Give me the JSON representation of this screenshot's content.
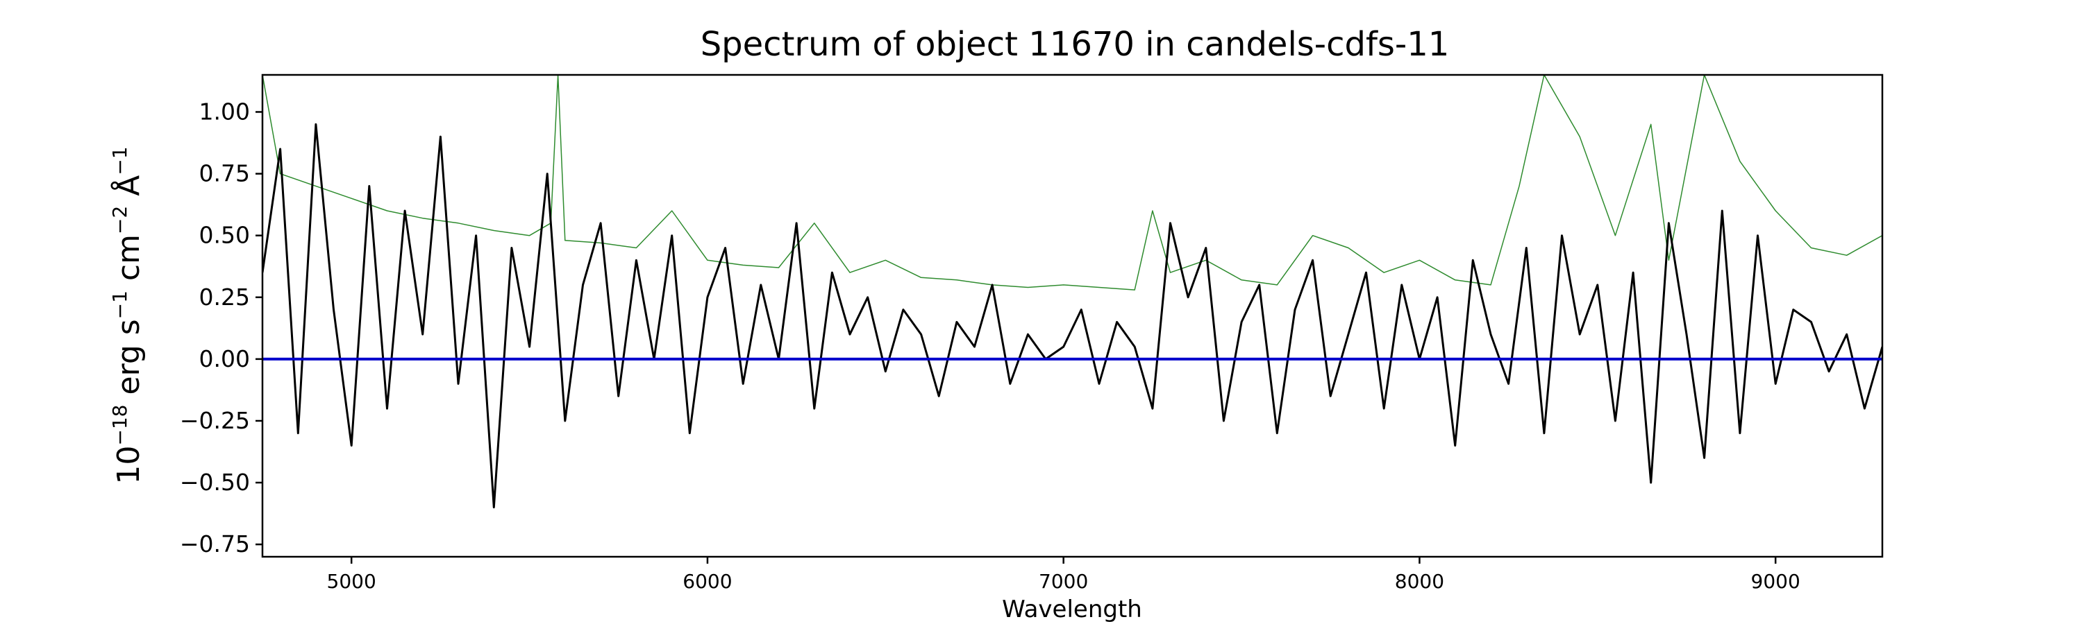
{
  "chart_data": {
    "type": "line",
    "title": "Spectrum of object 11670 in candels-cdfs-11",
    "xlabel": "Wavelength",
    "ylabel": {
      "base": "10",
      "exp": "−18",
      "unit1": " erg s",
      "unit1_exp": "−1",
      "unit2": " cm",
      "unit2_exp": "−2",
      "unit3": " Å",
      "unit3_exp": "−1"
    },
    "xlim": [
      4750,
      9300
    ],
    "ylim": [
      -0.8,
      1.15
    ],
    "xticks": [
      5000,
      6000,
      7000,
      8000,
      9000
    ],
    "xtick_labels": [
      "5000",
      "6000",
      "7000",
      "8000",
      "9000"
    ],
    "yticks": [
      1.0,
      0.75,
      0.5,
      0.25,
      0.0,
      -0.25,
      -0.5,
      -0.75
    ],
    "ytick_labels": [
      "1.00",
      "0.75",
      "0.50",
      "0.25",
      "0.00",
      "−0.25",
      "−0.50",
      "−0.75"
    ],
    "colors": {
      "flux": "#000000",
      "error": "#2e8b2e",
      "zero": "#0000cc"
    },
    "series": [
      {
        "role": "flux",
        "x": [
          4750,
          4800,
          4850,
          4900,
          4950,
          5000,
          5050,
          5100,
          5150,
          5200,
          5250,
          5300,
          5350,
          5400,
          5450,
          5500,
          5550,
          5600,
          5650,
          5700,
          5750,
          5800,
          5850,
          5900,
          5950,
          6000,
          6050,
          6100,
          6150,
          6200,
          6250,
          6300,
          6350,
          6400,
          6450,
          6500,
          6550,
          6600,
          6650,
          6700,
          6750,
          6800,
          6850,
          6900,
          6950,
          7000,
          7050,
          7100,
          7150,
          7200,
          7250,
          7300,
          7350,
          7400,
          7450,
          7500,
          7550,
          7600,
          7650,
          7700,
          7750,
          7800,
          7850,
          7900,
          7950,
          8000,
          8050,
          8100,
          8150,
          8200,
          8250,
          8300,
          8350,
          8400,
          8450,
          8500,
          8550,
          8600,
          8650,
          8700,
          8750,
          8800,
          8850,
          8900,
          8950,
          9000,
          9050,
          9100,
          9150,
          9200,
          9250,
          9300
        ],
        "y": [
          0.35,
          0.85,
          -0.3,
          0.95,
          0.2,
          -0.35,
          0.7,
          -0.2,
          0.6,
          0.1,
          0.9,
          -0.1,
          0.5,
          -0.6,
          0.45,
          0.05,
          0.75,
          -0.25,
          0.3,
          0.55,
          -0.15,
          0.4,
          0.0,
          0.5,
          -0.3,
          0.25,
          0.45,
          -0.1,
          0.3,
          0.0,
          0.55,
          -0.2,
          0.35,
          0.1,
          0.25,
          -0.05,
          0.2,
          0.1,
          -0.15,
          0.15,
          0.05,
          0.3,
          -0.1,
          0.1,
          0.0,
          0.05,
          0.2,
          -0.1,
          0.15,
          0.05,
          -0.2,
          0.55,
          0.25,
          0.45,
          -0.25,
          0.15,
          0.3,
          -0.3,
          0.2,
          0.4,
          -0.15,
          0.1,
          0.35,
          -0.2,
          0.3,
          0.0,
          0.25,
          -0.35,
          0.4,
          0.1,
          -0.1,
          0.45,
          -0.3,
          0.5,
          0.1,
          0.3,
          -0.25,
          0.35,
          -0.5,
          0.55,
          0.1,
          -0.4,
          0.6,
          -0.3,
          0.5,
          -0.1,
          0.2,
          0.15,
          -0.05,
          0.1,
          -0.2,
          0.05
        ]
      },
      {
        "role": "error",
        "x": [
          4750,
          4800,
          4900,
          5000,
          5100,
          5200,
          5300,
          5400,
          5500,
          5560,
          5580,
          5600,
          5700,
          5800,
          5900,
          6000,
          6100,
          6200,
          6300,
          6400,
          6500,
          6600,
          6700,
          6800,
          6900,
          7000,
          7100,
          7200,
          7250,
          7300,
          7400,
          7500,
          7600,
          7700,
          7800,
          7900,
          8000,
          8100,
          8200,
          8280,
          8350,
          8450,
          8550,
          8650,
          8700,
          8800,
          8900,
          9000,
          9100,
          9200,
          9300
        ],
        "y": [
          1.15,
          0.75,
          0.7,
          0.65,
          0.6,
          0.57,
          0.55,
          0.52,
          0.5,
          0.55,
          1.15,
          0.48,
          0.47,
          0.45,
          0.6,
          0.4,
          0.38,
          0.37,
          0.55,
          0.35,
          0.4,
          0.33,
          0.32,
          0.3,
          0.29,
          0.3,
          0.29,
          0.28,
          0.6,
          0.35,
          0.4,
          0.32,
          0.3,
          0.5,
          0.45,
          0.35,
          0.4,
          0.32,
          0.3,
          0.7,
          1.15,
          0.9,
          0.5,
          0.95,
          0.4,
          1.15,
          0.8,
          0.6,
          0.45,
          0.42,
          0.5
        ]
      }
    ]
  }
}
